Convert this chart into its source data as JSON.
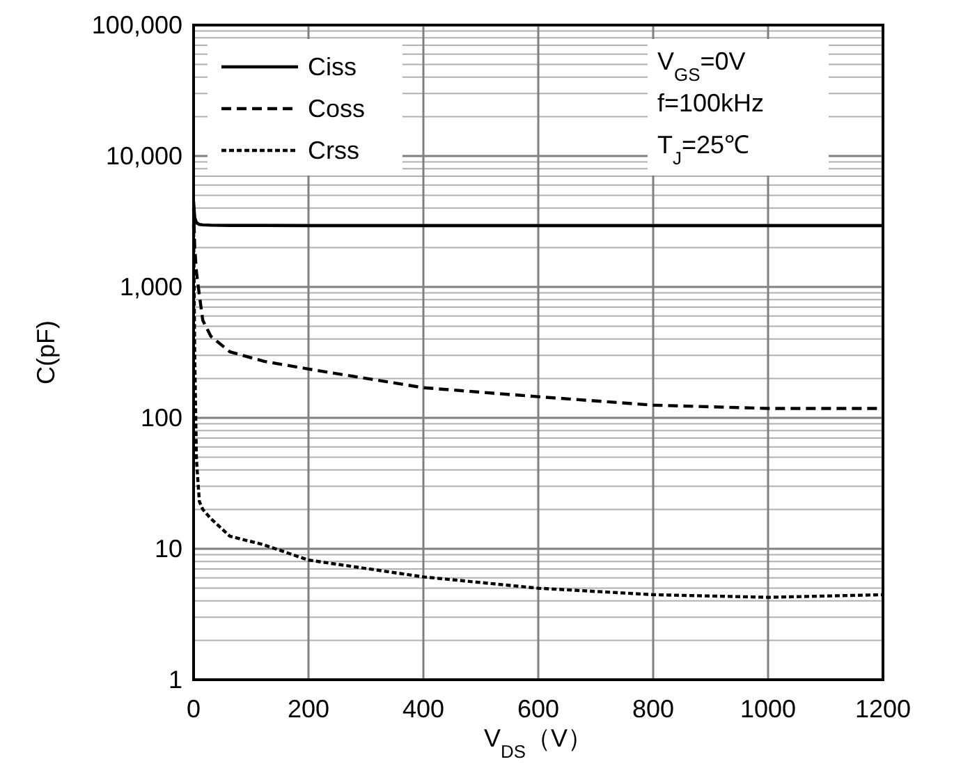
{
  "chart_data": {
    "type": "line",
    "xlabel": "V$_{DS}$（V）",
    "ylabel": "C(pF)",
    "log": "y",
    "grid": true,
    "legend": "top left",
    "xlim": [
      0,
      1200
    ],
    "xticks": [
      0,
      200,
      400,
      600,
      800,
      1000,
      1200
    ],
    "ylim": [
      1,
      100000
    ],
    "yticks": [
      {
        "value": 1,
        "label": "1"
      },
      {
        "value": 10,
        "label": "10"
      },
      {
        "value": 100,
        "label": "100"
      },
      {
        "value": 1000,
        "label": "1,000"
      },
      {
        "value": 10000,
        "label": "10,000"
      },
      {
        "value": 100000,
        "label": "100,000"
      }
    ],
    "x": [
      0,
      2,
      5,
      10,
      16,
      30,
      63,
      123,
      200,
      400,
      600,
      800,
      1000,
      1200
    ],
    "series": [
      {
        "name": "Ciss",
        "color": "#000000",
        "line_style": "solid",
        "values": [
          4500,
          3400,
          3100,
          3000,
          2980,
          2960,
          2950,
          2950,
          2940,
          2940,
          2940,
          2940,
          2940,
          2940
        ]
      },
      {
        "name": "Coss",
        "color": "#000000",
        "line_style": "dashed",
        "values": [
          4000,
          2000,
          1300,
          870,
          556,
          420,
          320,
          270,
          236,
          170,
          145,
          125,
          118,
          118
        ]
      },
      {
        "name": "Crss",
        "color": "#000000",
        "line_style": "dotted",
        "values": [
          3000,
          300,
          48,
          23,
          20,
          17,
          12.5,
          10.7,
          8.2,
          6.1,
          5.0,
          4.46,
          4.26,
          4.46
        ]
      }
    ],
    "annotations": [
      "V$_{GS}$=0V",
      "f=100kHz",
      "T$_{J}$=25℃"
    ]
  }
}
